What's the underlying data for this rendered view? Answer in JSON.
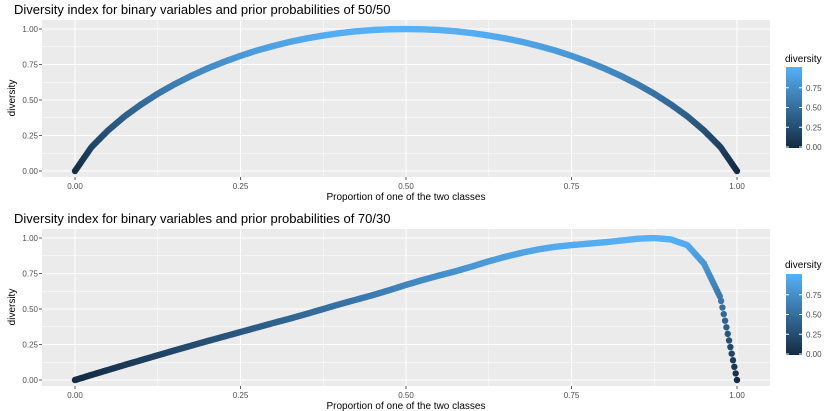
{
  "colors": {
    "low": "#132b43",
    "high": "#56b1f7",
    "panel": "#ebebeb",
    "grid": "#ffffff"
  },
  "chart_data": [
    {
      "type": "scatter",
      "title": "Diversity index for binary variables and prior probabilities of 50/50",
      "xlabel": "Proportion of one of the two classes",
      "ylabel": "diversity",
      "xlim": [
        0,
        1
      ],
      "ylim": [
        0,
        1
      ],
      "x_ticks": [
        "0.00",
        "0.25",
        "0.50",
        "0.75",
        "1.00"
      ],
      "y_ticks": [
        "0.00",
        "0.25",
        "0.50",
        "0.75",
        "1.00"
      ],
      "grid": true,
      "legend": {
        "title": "diversity",
        "position": "right",
        "ticks": [
          "0.00",
          "0.25",
          "0.50",
          "0.75"
        ]
      },
      "prior": 0.5,
      "x": [
        0,
        0.025,
        0.05,
        0.075,
        0.1,
        0.125,
        0.15,
        0.175,
        0.2,
        0.225,
        0.25,
        0.275,
        0.3,
        0.325,
        0.35,
        0.375,
        0.4,
        0.425,
        0.45,
        0.475,
        0.5,
        0.525,
        0.55,
        0.575,
        0.6,
        0.625,
        0.65,
        0.675,
        0.7,
        0.725,
        0.75,
        0.775,
        0.8,
        0.825,
        0.85,
        0.875,
        0.9,
        0.925,
        0.95,
        0.975,
        1
      ],
      "y": [
        0,
        0.169,
        0.286,
        0.385,
        0.469,
        0.544,
        0.61,
        0.669,
        0.722,
        0.769,
        0.811,
        0.849,
        0.881,
        0.91,
        0.934,
        0.954,
        0.971,
        0.984,
        0.993,
        0.998,
        1,
        0.998,
        0.993,
        0.984,
        0.971,
        0.954,
        0.934,
        0.91,
        0.881,
        0.849,
        0.811,
        0.769,
        0.722,
        0.669,
        0.61,
        0.544,
        0.469,
        0.385,
        0.286,
        0.169,
        0
      ]
    },
    {
      "type": "scatter",
      "title": "Diversity index for binary variables and prior probabilities of 70/30",
      "xlabel": "Proportion of one of the two classes",
      "ylabel": "diversity",
      "xlim": [
        0,
        1
      ],
      "ylim": [
        0,
        1
      ],
      "x_ticks": [
        "0.00",
        "0.25",
        "0.50",
        "0.75",
        "1.00"
      ],
      "y_ticks": [
        "0.00",
        "0.25",
        "0.50",
        "0.75",
        "1.00"
      ],
      "grid": true,
      "legend": {
        "title": "diversity",
        "position": "right",
        "ticks": [
          "0.00",
          "0.25",
          "0.50",
          "0.75"
        ]
      },
      "prior": 0.7,
      "x": [
        0,
        0.025,
        0.05,
        0.075,
        0.1,
        0.125,
        0.15,
        0.175,
        0.2,
        0.225,
        0.25,
        0.275,
        0.3,
        0.325,
        0.35,
        0.375,
        0.4,
        0.425,
        0.45,
        0.475,
        0.5,
        0.525,
        0.55,
        0.575,
        0.6,
        0.625,
        0.65,
        0.675,
        0.7,
        0.725,
        0.75,
        0.775,
        0.8,
        0.825,
        0.85,
        0.875,
        0.9,
        0.925,
        0.95,
        0.975,
        1
      ],
      "y": [
        0,
        0.036,
        0.071,
        0.106,
        0.14,
        0.174,
        0.208,
        0.241,
        0.274,
        0.306,
        0.338,
        0.37,
        0.402,
        0.433,
        0.466,
        0.5,
        0.534,
        0.566,
        0.598,
        0.633,
        0.67,
        0.704,
        0.736,
        0.766,
        0.8,
        0.836,
        0.868,
        0.896,
        0.92,
        0.938,
        0.95,
        0.96,
        0.97,
        0.982,
        0.995,
        1,
        0.99,
        0.95,
        0.82,
        0.58,
        0
      ]
    }
  ]
}
